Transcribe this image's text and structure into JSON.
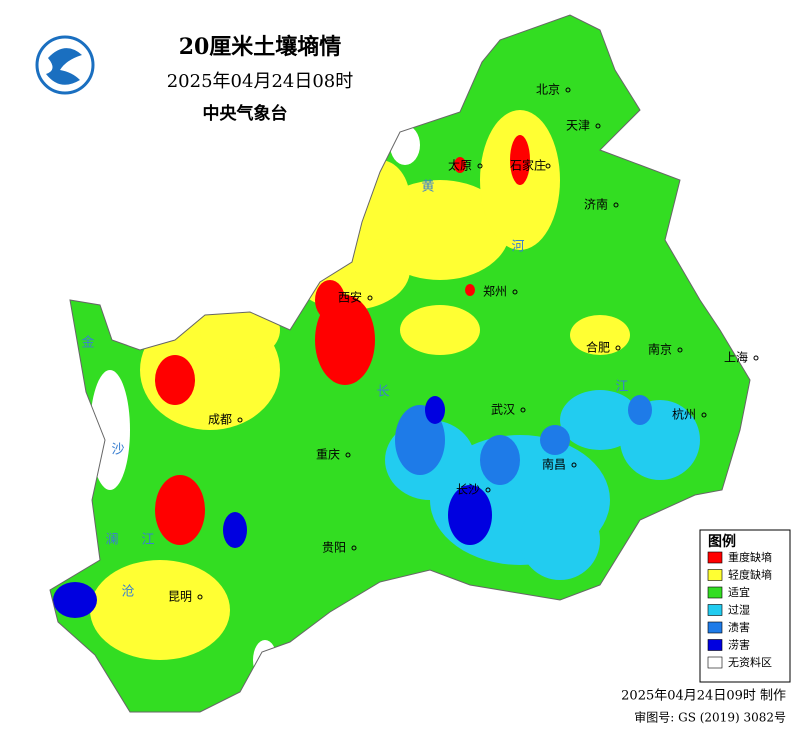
{
  "header": {
    "title": "20厘米土壤墒情",
    "date": "2025年04月24日08时",
    "agency": "中央气象台"
  },
  "cities": [
    "北京",
    "天津",
    "石家庄",
    "太原",
    "济南",
    "郑州",
    "西安",
    "合肥",
    "南京",
    "上海",
    "武汉",
    "杭州",
    "成都",
    "重庆",
    "南昌",
    "长沙",
    "贵阳",
    "昆明"
  ],
  "rivers": [
    "黄",
    "河",
    "长",
    "江",
    "金",
    "沙",
    "江",
    "澜",
    "沧"
  ],
  "legend": {
    "title": "图例",
    "items": [
      {
        "label": "重度缺墒",
        "color": "#ff0000"
      },
      {
        "label": "轻度缺墒",
        "color": "#ffff33"
      },
      {
        "label": "适宜",
        "color": "#33dd22"
      },
      {
        "label": "过湿",
        "color": "#22ccf0"
      },
      {
        "label": "渍害",
        "color": "#1e7be8"
      },
      {
        "label": "涝害",
        "color": "#0000e0"
      },
      {
        "label": "无资料区",
        "color": "#ffffff"
      }
    ]
  },
  "footer": {
    "made": "2025年04月24日09时 制作",
    "review": "审图号: GS (2019) 3082号"
  }
}
